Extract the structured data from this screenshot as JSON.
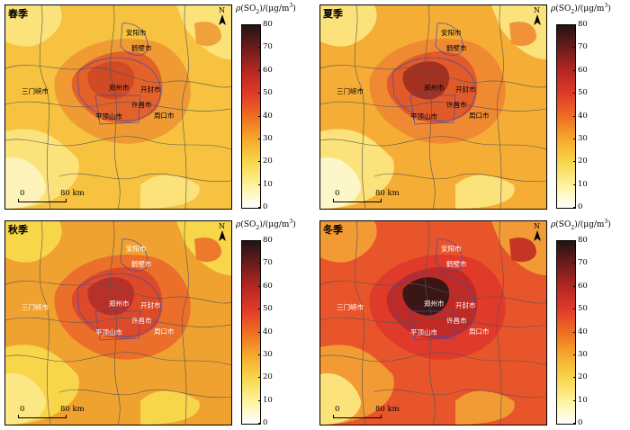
{
  "legend_title": "ρ(SO2)/(μg/m3)",
  "legend_ticks": [
    "80",
    "70",
    "60",
    "50",
    "40",
    "30",
    "20",
    "10",
    "0"
  ],
  "north_label": "N",
  "scale": {
    "zero": "0",
    "km": "80 km"
  },
  "panels": [
    {
      "season": "春季",
      "cities": [
        "安阳市",
        "鹤壁市",
        "三门峡市",
        "郑州市",
        "开封市",
        "许昌市",
        "平顶山市",
        "周口市"
      ],
      "colors": {
        "base": "#f6c23f",
        "mid": "#f09a34",
        "high": "#e3622a",
        "peak": "#cf4a25",
        "light": "#fbe27a",
        "pale": "#fdf2b8"
      }
    },
    {
      "season": "夏季",
      "cities": [
        "安阳市",
        "鹤壁市",
        "三门峡市",
        "郑州市",
        "开封市",
        "许昌市",
        "平顶山市",
        "周口市"
      ],
      "colors": {
        "base": "#f5ad36",
        "mid": "#f08a32",
        "high": "#e05a2a",
        "peak": "#a4311f",
        "light": "#fbe27a",
        "pale": "#fdf6c8"
      }
    },
    {
      "season": "秋季",
      "cities": [
        "安阳市",
        "鹤壁市",
        "三门峡市",
        "郑州市",
        "开封市",
        "许昌市",
        "平顶山市",
        "周口市"
      ],
      "colors": {
        "base": "#f0a230",
        "mid": "#eb6f2a",
        "high": "#dc4a2a",
        "peak": "#b8302a",
        "light": "#f8d64a",
        "pale": "#fbe885"
      }
    },
    {
      "season": "冬季",
      "cities": [
        "安阳市",
        "鹤壁市",
        "三门峡市",
        "郑州市",
        "开封市",
        "许昌市",
        "平顶山市",
        "周口市"
      ],
      "colors": {
        "base": "#e9552a",
        "mid": "#e03a2a",
        "high": "#c02a24",
        "peak": "#3a1616",
        "light": "#f29a34",
        "pale": "#fbe27a"
      }
    }
  ]
}
